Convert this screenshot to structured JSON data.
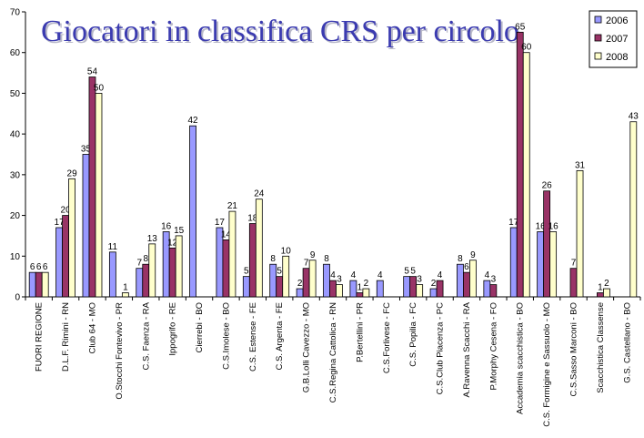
{
  "chart_data": {
    "type": "bar",
    "title": "Giocatori in classifica CRS per circolo",
    "categories": [
      "FUORI REGIONE",
      "D.L.F. Rimini - RN",
      "Club 64 - MO",
      "O.Stocchi Fontevivo - PR",
      "C.S. Faenza - RA",
      "Ippogrifo - RE",
      "Cierrebi - BO",
      "C.S.Imolese - BO",
      "C.S. Estense - FE",
      "C.S. Argenta - FE",
      "G.B.Lolli Cavezzo - MO",
      "C.S.Regina Cattolica - RN",
      "P.Bertellini - PR",
      "C.S.Forlivese - FC",
      "C.S. Popilia - FC",
      "C.S.Club Piacenza - PC",
      "A.Ravenna Scacchi - RA",
      "P.Morphy Cesena - FO",
      "Accademia scacchistica - BO",
      "C.S. Formigine e Sassuolo - MO",
      "C.S.Sasso Marconi - BO",
      "Scacchistica Classense",
      "G.S. Castellano - BO"
    ],
    "series": [
      {
        "name": "2006",
        "color": "#9999ff",
        "values": [
          6,
          17,
          35,
          11,
          7,
          16,
          42,
          17,
          5,
          8,
          2,
          8,
          4,
          4,
          5,
          2,
          8,
          4,
          17,
          16,
          null,
          null,
          null
        ]
      },
      {
        "name": "2007",
        "color": "#993366",
        "values": [
          6,
          20,
          54,
          null,
          8,
          12,
          null,
          14,
          18,
          5,
          7,
          4,
          1,
          null,
          5,
          4,
          6,
          3,
          65,
          26,
          7,
          1,
          null
        ]
      },
      {
        "name": "2008",
        "color": "#ffffcc",
        "values": [
          6,
          29,
          50,
          1,
          13,
          15,
          null,
          21,
          24,
          10,
          9,
          3,
          2,
          null,
          3,
          null,
          9,
          null,
          60,
          16,
          31,
          2,
          43
        ]
      }
    ],
    "ylim": [
      0,
      70
    ],
    "yticks": [
      0,
      10,
      20,
      30,
      40,
      50,
      60,
      70
    ],
    "grid": false,
    "legend": "top-right"
  }
}
